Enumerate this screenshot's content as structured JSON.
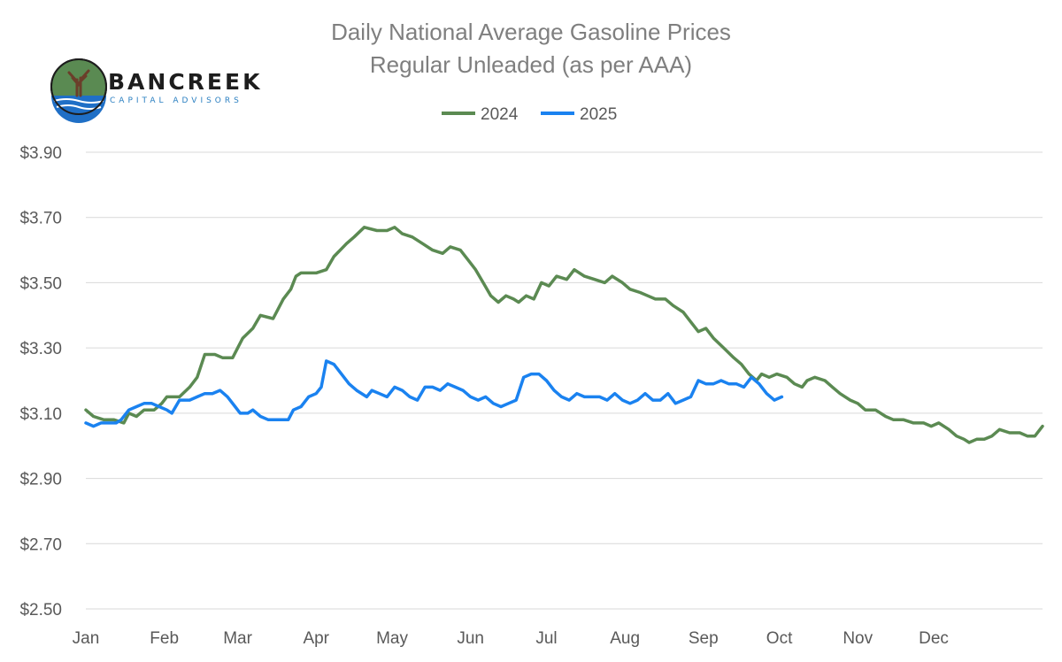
{
  "logo": {
    "name": "BANCREEK",
    "tagline": "CAPITAL ADVISORS",
    "colors": {
      "green": "#5a8a52",
      "blue": "#1f6fc6",
      "dark": "#1d1d1d"
    }
  },
  "chart_data": {
    "type": "line",
    "title": "Daily National Average Gasoline Prices",
    "subtitle": "Regular Unleaded (as per AAA)",
    "xlabel": "",
    "ylabel": "",
    "x_unit": "day of year",
    "xlim": [
      1,
      366
    ],
    "ylim": [
      2.5,
      3.9
    ],
    "y_ticks": [
      "$2.50",
      "$2.70",
      "$2.90",
      "$3.10",
      "$3.30",
      "$3.50",
      "$3.70",
      "$3.90"
    ],
    "y_tick_values": [
      2.5,
      2.7,
      2.9,
      3.1,
      3.3,
      3.5,
      3.7,
      3.9
    ],
    "x_ticks": [
      "Jan",
      "Feb",
      "Mar",
      "Apr",
      "May",
      "Jun",
      "Jul",
      "Aug",
      "Sep",
      "Oct",
      "Nov",
      "Dec"
    ],
    "x_tick_days": [
      1,
      32,
      61,
      92,
      122,
      153,
      183,
      214,
      245,
      275,
      306,
      336
    ],
    "grid": "horizontal",
    "legend": "top-center",
    "series": [
      {
        "name": "2024",
        "color": "#5b8a52",
        "points": [
          [
            1,
            3.11
          ],
          [
            4,
            3.09
          ],
          [
            8,
            3.08
          ],
          [
            12,
            3.08
          ],
          [
            16,
            3.07
          ],
          [
            18,
            3.1
          ],
          [
            21,
            3.09
          ],
          [
            24,
            3.11
          ],
          [
            28,
            3.11
          ],
          [
            31,
            3.13
          ],
          [
            33,
            3.15
          ],
          [
            38,
            3.15
          ],
          [
            42,
            3.18
          ],
          [
            45,
            3.21
          ],
          [
            48,
            3.28
          ],
          [
            52,
            3.28
          ],
          [
            55,
            3.27
          ],
          [
            59,
            3.27
          ],
          [
            61,
            3.3
          ],
          [
            63,
            3.33
          ],
          [
            67,
            3.36
          ],
          [
            70,
            3.4
          ],
          [
            75,
            3.39
          ],
          [
            79,
            3.45
          ],
          [
            82,
            3.48
          ],
          [
            84,
            3.52
          ],
          [
            86,
            3.53
          ],
          [
            92,
            3.53
          ],
          [
            96,
            3.54
          ],
          [
            99,
            3.58
          ],
          [
            104,
            3.62
          ],
          [
            107,
            3.64
          ],
          [
            111,
            3.67
          ],
          [
            116,
            3.66
          ],
          [
            120,
            3.66
          ],
          [
            123,
            3.67
          ],
          [
            126,
            3.65
          ],
          [
            130,
            3.64
          ],
          [
            134,
            3.62
          ],
          [
            138,
            3.6
          ],
          [
            142,
            3.59
          ],
          [
            145,
            3.61
          ],
          [
            149,
            3.6
          ],
          [
            152,
            3.57
          ],
          [
            155,
            3.54
          ],
          [
            158,
            3.5
          ],
          [
            161,
            3.46
          ],
          [
            164,
            3.44
          ],
          [
            167,
            3.46
          ],
          [
            170,
            3.45
          ],
          [
            172,
            3.44
          ],
          [
            175,
            3.46
          ],
          [
            178,
            3.45
          ],
          [
            181,
            3.5
          ],
          [
            184,
            3.49
          ],
          [
            187,
            3.52
          ],
          [
            191,
            3.51
          ],
          [
            194,
            3.54
          ],
          [
            198,
            3.52
          ],
          [
            202,
            3.51
          ],
          [
            206,
            3.5
          ],
          [
            209,
            3.52
          ],
          [
            213,
            3.5
          ],
          [
            216,
            3.48
          ],
          [
            220,
            3.47
          ],
          [
            223,
            3.46
          ],
          [
            226,
            3.45
          ],
          [
            230,
            3.45
          ],
          [
            233,
            3.43
          ],
          [
            237,
            3.41
          ],
          [
            240,
            3.38
          ],
          [
            243,
            3.35
          ],
          [
            246,
            3.36
          ],
          [
            249,
            3.33
          ],
          [
            253,
            3.3
          ],
          [
            257,
            3.27
          ],
          [
            260,
            3.25
          ],
          [
            263,
            3.22
          ],
          [
            266,
            3.2
          ],
          [
            268,
            3.22
          ],
          [
            271,
            3.21
          ],
          [
            274,
            3.22
          ],
          [
            278,
            3.21
          ],
          [
            281,
            3.19
          ],
          [
            284,
            3.18
          ],
          [
            286,
            3.2
          ],
          [
            289,
            3.21
          ],
          [
            293,
            3.2
          ],
          [
            296,
            3.18
          ],
          [
            299,
            3.16
          ],
          [
            303,
            3.14
          ],
          [
            306,
            3.13
          ],
          [
            309,
            3.11
          ],
          [
            313,
            3.11
          ],
          [
            317,
            3.09
          ],
          [
            320,
            3.08
          ],
          [
            324,
            3.08
          ],
          [
            328,
            3.07
          ],
          [
            332,
            3.07
          ],
          [
            335,
            3.06
          ],
          [
            338,
            3.07
          ],
          [
            342,
            3.05
          ],
          [
            345,
            3.03
          ],
          [
            348,
            3.02
          ],
          [
            350,
            3.01
          ],
          [
            353,
            3.02
          ],
          [
            356,
            3.02
          ],
          [
            359,
            3.03
          ],
          [
            362,
            3.05
          ],
          [
            366,
            3.04
          ],
          [
            370,
            3.04
          ],
          [
            373,
            3.03
          ],
          [
            376,
            3.03
          ],
          [
            379,
            3.06
          ]
        ]
      },
      {
        "name": "2025",
        "color": "#1a82f0",
        "points": [
          [
            1,
            3.07
          ],
          [
            4,
            3.06
          ],
          [
            7,
            3.07
          ],
          [
            10,
            3.07
          ],
          [
            13,
            3.07
          ],
          [
            15,
            3.08
          ],
          [
            18,
            3.11
          ],
          [
            21,
            3.12
          ],
          [
            24,
            3.13
          ],
          [
            27,
            3.13
          ],
          [
            30,
            3.12
          ],
          [
            33,
            3.11
          ],
          [
            35,
            3.1
          ],
          [
            38,
            3.14
          ],
          [
            42,
            3.14
          ],
          [
            45,
            3.15
          ],
          [
            48,
            3.16
          ],
          [
            51,
            3.16
          ],
          [
            54,
            3.17
          ],
          [
            57,
            3.15
          ],
          [
            60,
            3.12
          ],
          [
            62,
            3.1
          ],
          [
            65,
            3.1
          ],
          [
            67,
            3.11
          ],
          [
            70,
            3.09
          ],
          [
            73,
            3.08
          ],
          [
            76,
            3.08
          ],
          [
            79,
            3.08
          ],
          [
            81,
            3.08
          ],
          [
            83,
            3.11
          ],
          [
            86,
            3.12
          ],
          [
            89,
            3.15
          ],
          [
            92,
            3.16
          ],
          [
            94,
            3.18
          ],
          [
            96,
            3.26
          ],
          [
            99,
            3.25
          ],
          [
            102,
            3.22
          ],
          [
            105,
            3.19
          ],
          [
            108,
            3.17
          ],
          [
            112,
            3.15
          ],
          [
            114,
            3.17
          ],
          [
            117,
            3.16
          ],
          [
            120,
            3.15
          ],
          [
            123,
            3.18
          ],
          [
            126,
            3.17
          ],
          [
            129,
            3.15
          ],
          [
            132,
            3.14
          ],
          [
            135,
            3.18
          ],
          [
            138,
            3.18
          ],
          [
            141,
            3.17
          ],
          [
            144,
            3.19
          ],
          [
            147,
            3.18
          ],
          [
            150,
            3.17
          ],
          [
            153,
            3.15
          ],
          [
            156,
            3.14
          ],
          [
            159,
            3.15
          ],
          [
            162,
            3.13
          ],
          [
            165,
            3.12
          ],
          [
            168,
            3.13
          ],
          [
            171,
            3.14
          ],
          [
            174,
            3.21
          ],
          [
            177,
            3.22
          ],
          [
            180,
            3.22
          ],
          [
            183,
            3.2
          ],
          [
            186,
            3.17
          ],
          [
            189,
            3.15
          ],
          [
            192,
            3.14
          ],
          [
            195,
            3.16
          ],
          [
            198,
            3.15
          ],
          [
            201,
            3.15
          ],
          [
            204,
            3.15
          ],
          [
            207,
            3.14
          ],
          [
            210,
            3.16
          ],
          [
            213,
            3.14
          ],
          [
            216,
            3.13
          ],
          [
            219,
            3.14
          ],
          [
            222,
            3.16
          ],
          [
            225,
            3.14
          ],
          [
            228,
            3.14
          ],
          [
            231,
            3.16
          ],
          [
            234,
            3.13
          ],
          [
            237,
            3.14
          ],
          [
            240,
            3.15
          ],
          [
            243,
            3.2
          ],
          [
            246,
            3.19
          ],
          [
            249,
            3.19
          ],
          [
            252,
            3.2
          ],
          [
            255,
            3.19
          ],
          [
            258,
            3.19
          ],
          [
            261,
            3.18
          ],
          [
            264,
            3.21
          ],
          [
            267,
            3.19
          ],
          [
            270,
            3.16
          ],
          [
            273,
            3.14
          ],
          [
            276,
            3.15
          ]
        ]
      }
    ]
  }
}
